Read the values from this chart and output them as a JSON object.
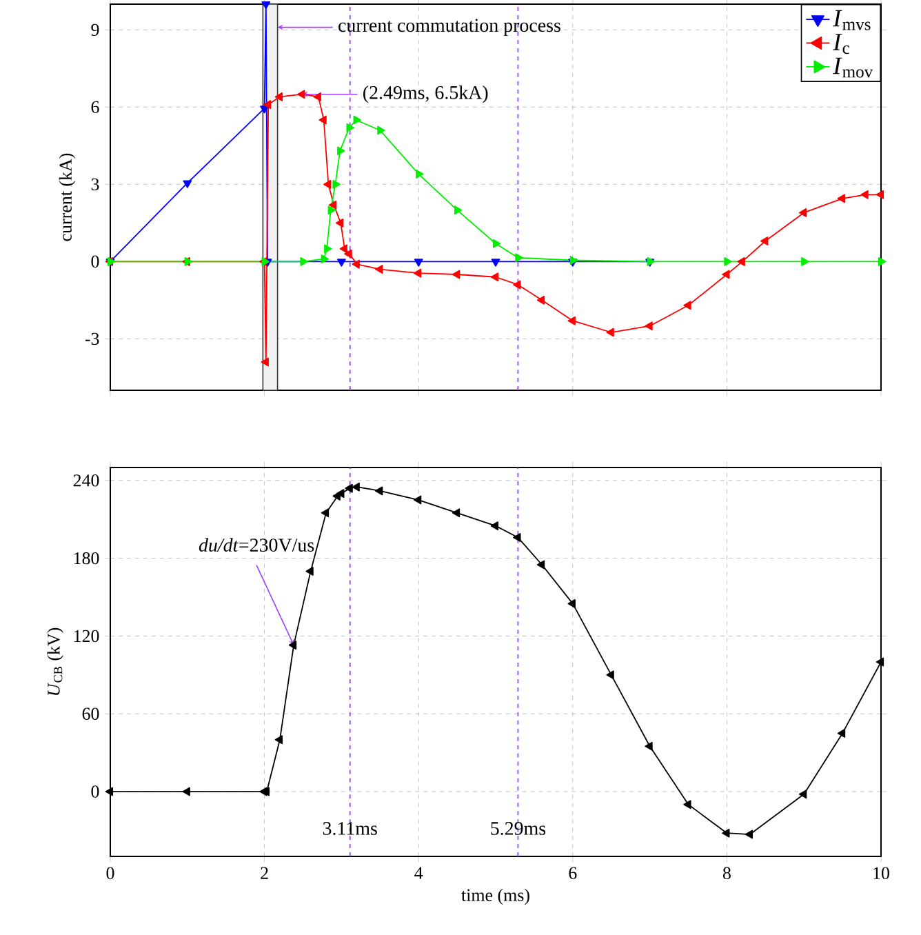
{
  "chart_data": [
    {
      "type": "line",
      "ylabel": "current (kA)",
      "xlim": [
        0,
        10
      ],
      "xticks": [
        0,
        2,
        4,
        6,
        8,
        10
      ],
      "ylim": [
        -5,
        10
      ],
      "yticks": [
        -3,
        0,
        3,
        6,
        9
      ],
      "tick_labels": "y",
      "grid": true,
      "legend": "top right",
      "marker": "triangle",
      "series": [
        {
          "name": "*I*$_{mvs}$",
          "color": "#0000ff",
          "x": [
            0,
            1,
            2,
            2.02,
            2.04,
            3,
            4,
            5,
            6,
            7
          ],
          "values": [
            0,
            3.05,
            5.95,
            10,
            0,
            0,
            0,
            0,
            0,
            0
          ]
        },
        {
          "name": "*I*$_{c}$",
          "color": "#ff0000",
          "x": [
            0,
            1,
            2,
            2.02,
            2.05,
            2.2,
            2.49,
            2.7,
            2.77,
            2.83,
            2.9,
            2.99,
            3.04,
            3.1,
            3.2,
            3.5,
            4,
            4.5,
            5,
            5.29,
            5.6,
            6,
            6.5,
            7,
            7.5,
            8,
            8.2,
            8.5,
            9,
            9.5,
            9.8,
            10
          ],
          "values": [
            0,
            0,
            0,
            -3.9,
            6.1,
            6.4,
            6.5,
            6.4,
            5.5,
            3.0,
            2.2,
            1.5,
            0.5,
            0.3,
            -0.1,
            -0.3,
            -0.45,
            -0.5,
            -0.6,
            -0.9,
            -1.5,
            -2.3,
            -2.75,
            -2.5,
            -1.7,
            -0.5,
            0,
            0.8,
            1.9,
            2.45,
            2.6,
            2.6
          ]
        },
        {
          "name": "*I*$_{mov}$",
          "color": "#00ee00",
          "x": [
            0,
            1,
            2,
            2.5,
            2.77,
            2.81,
            2.86,
            2.92,
            2.98,
            3.1,
            3.19,
            3.5,
            4,
            4.5,
            5,
            5.29,
            6,
            7,
            8,
            9,
            10
          ],
          "values": [
            0,
            0,
            0,
            0,
            0.1,
            0.5,
            2.0,
            3.0,
            4.3,
            5.2,
            5.5,
            5.1,
            3.4,
            2.0,
            0.7,
            0.15,
            0.05,
            0,
            0,
            0,
            0
          ]
        }
      ],
      "ref_lines": [
        {
          "axis": "x",
          "value": 3.11,
          "color": "#a040ff",
          "line_style": "dashed"
        },
        {
          "axis": "x",
          "value": 5.29,
          "color": "#a040ff",
          "line_style": "dashed"
        }
      ],
      "bands": [
        {
          "axis": "x",
          "from": 1.98,
          "to": 2.17,
          "color": "#333333"
        }
      ],
      "annotations": [
        {
          "text": "current commutation process",
          "x": 2.17,
          "y": 9.1
        },
        {
          "text": "(2.49ms, 6.5kA)",
          "x": 2.49,
          "y": 6.5
        }
      ]
    },
    {
      "type": "line",
      "xlabel": "time (ms)",
      "ylabel": "*U*$_{CB}$ (kV)",
      "xlim": [
        0,
        10
      ],
      "xticks": [
        0,
        2,
        4,
        6,
        8,
        10
      ],
      "ylim": [
        -50,
        250
      ],
      "yticks": [
        0,
        60,
        120,
        180,
        240
      ],
      "grid": true,
      "marker": "triangle",
      "series": [
        {
          "color": "#000000",
          "x": [
            0,
            1,
            2,
            2.03,
            2.2,
            2.38,
            2.6,
            2.8,
            2.95,
            3,
            3.11,
            3.2,
            3.5,
            4,
            4.5,
            5,
            5.29,
            5.6,
            6,
            6.5,
            7,
            7.5,
            8,
            8.3,
            9,
            9.5,
            10
          ],
          "values": [
            0,
            0,
            0,
            0,
            40,
            113,
            170,
            215,
            228,
            230,
            234,
            235,
            232,
            225,
            215,
            205,
            196,
            175,
            145,
            90,
            35,
            -10,
            -32,
            -33,
            -2,
            45,
            100
          ]
        }
      ],
      "ref_lines": [
        {
          "axis": "x",
          "value": 3.11,
          "label": "3.11ms",
          "color": "#a040ff",
          "line_style": "dashed"
        },
        {
          "axis": "x",
          "value": 5.29,
          "label": "5.29ms",
          "color": "#a040ff",
          "line_style": "dashed"
        }
      ],
      "annotations": [
        {
          "text": "*du/dt*=230V/us",
          "x": 2.38,
          "y": 113
        }
      ]
    }
  ]
}
